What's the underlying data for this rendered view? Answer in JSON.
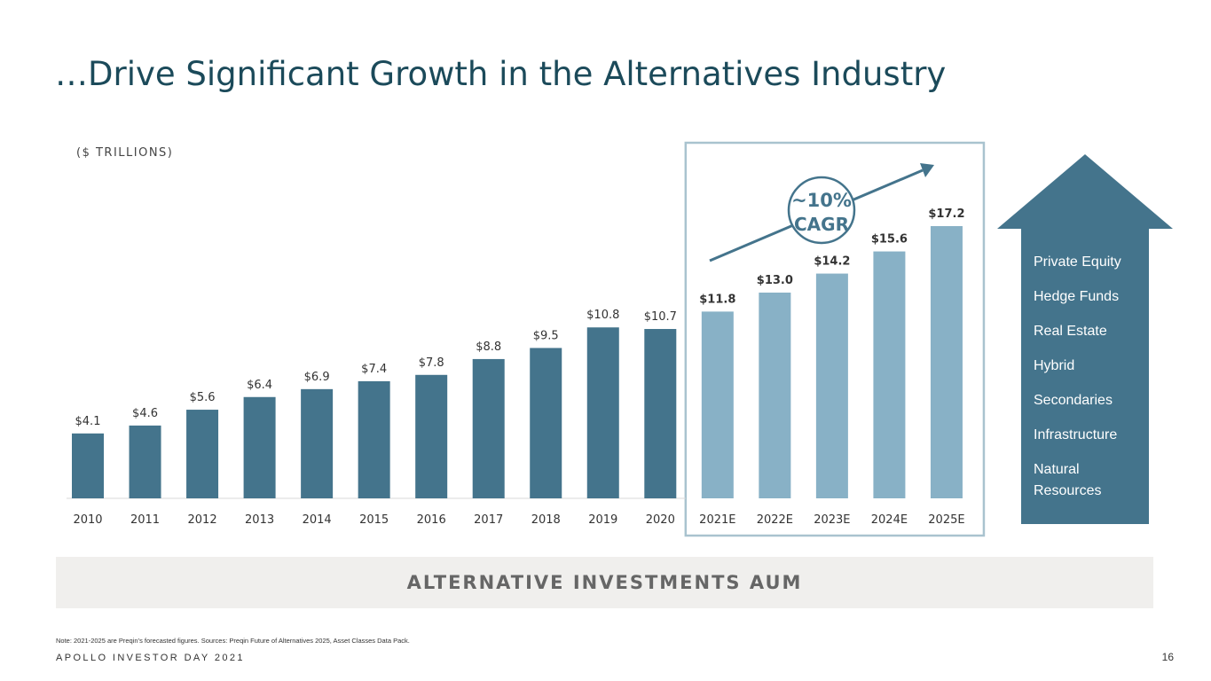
{
  "header": {
    "title": "…Drive Significant Growth in the Alternatives Industry"
  },
  "chart_data": {
    "type": "bar",
    "unit_label": "($ TRILLIONS)",
    "categories": [
      "2010",
      "2011",
      "2012",
      "2013",
      "2014",
      "2015",
      "2016",
      "2017",
      "2018",
      "2019",
      "2020",
      "2021E",
      "2022E",
      "2023E",
      "2024E",
      "2025E"
    ],
    "values": [
      4.1,
      4.6,
      5.6,
      6.4,
      6.9,
      7.4,
      7.8,
      8.8,
      9.5,
      10.8,
      10.7,
      11.8,
      13.0,
      14.2,
      15.6,
      17.2
    ],
    "data_labels": [
      "$4.1",
      "$4.6",
      "$5.6",
      "$6.4",
      "$6.9",
      "$7.4",
      "$7.8",
      "$8.8",
      "$9.5",
      "$10.8",
      "$10.7",
      "$11.8",
      "$13.0",
      "$14.2",
      "$15.6",
      "$17.2"
    ],
    "forecast": [
      false,
      false,
      false,
      false,
      false,
      false,
      false,
      false,
      false,
      false,
      false,
      true,
      true,
      true,
      true,
      true
    ],
    "ylim": [
      0,
      17.2
    ],
    "colors": {
      "actual": "#44748c",
      "forecast": "#88b1c6",
      "highlight_box": "#a9c3cf",
      "axis": "#d9d9d9"
    },
    "annotation": {
      "rate": "~10%",
      "label": "CAGR"
    }
  },
  "arrow_panel": {
    "color": "#44748c",
    "items": [
      "Private Equity",
      "Hedge Funds",
      "Real Estate",
      "Hybrid",
      "Secondaries",
      "Infrastructure",
      "Natural Resources"
    ]
  },
  "banner": {
    "text": "ALTERNATIVE INVESTMENTS AUM"
  },
  "footer": {
    "note": "Note: 2021-2025 are Preqin’s forecasted figures. Sources: Preqin Future of Alternatives 2025, Asset Classes Data Pack.",
    "brand": "APOLLO INVESTOR DAY 2021",
    "page_number": "16"
  }
}
